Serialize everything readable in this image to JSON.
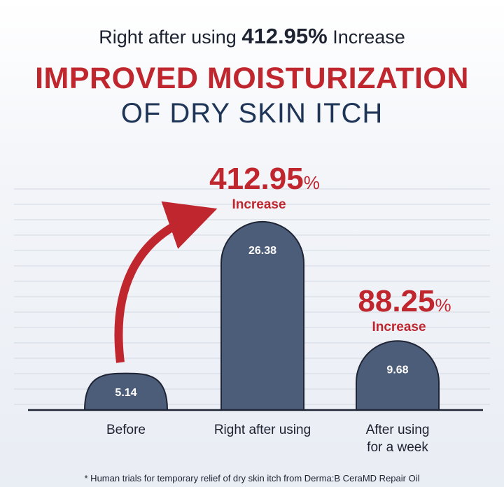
{
  "header": {
    "lead": "Right after using",
    "highlight": "412.95%",
    "trail": "Increase",
    "title_line1": "IMPROVED MOISTURIZATION",
    "title_line2": "OF DRY SKIN ITCH"
  },
  "chart_data": {
    "type": "bar",
    "title": "IMPROVED MOISTURIZATION OF DRY SKIN ITCH",
    "categories": [
      "Before",
      "Right after using",
      "After using for a week"
    ],
    "category_lines": [
      [
        "Before"
      ],
      [
        "Right after using"
      ],
      [
        "After using",
        "for a week"
      ]
    ],
    "values": [
      5.14,
      26.38,
      9.68
    ],
    "value_labels": [
      "5.14",
      "26.38",
      "9.68"
    ],
    "annotations": [
      {
        "category_index": 1,
        "number": "412.95",
        "unit": "%",
        "label": "Increase"
      },
      {
        "category_index": 2,
        "number": "88.25",
        "unit": "%",
        "label": "Increase"
      }
    ],
    "ylim": [
      0,
      30
    ],
    "grid": true,
    "colors": {
      "bar_fill": "#4c5d7a",
      "bar_stroke": "#1f2535",
      "accent": "#c0262e",
      "grid": "#d3d8e2",
      "baseline": "#1f2535"
    }
  },
  "footnote": "* Human trials for temporary relief of dry skin itch from Derma:B CeraMD Repair Oil"
}
